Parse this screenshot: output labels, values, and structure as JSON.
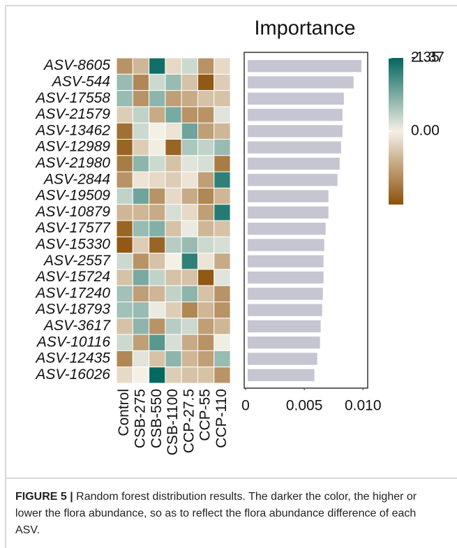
{
  "chart_data": [
    {
      "type": "heatmap",
      "rows": [
        "ASV-8605",
        "ASV-544",
        "ASV-17558",
        "ASV-21579",
        "ASV-13462",
        "ASV-12989",
        "ASV-21980",
        "ASV-2844",
        "ASV-19509",
        "ASV-10879",
        "ASV-17577",
        "ASV-15330",
        "ASV-2557",
        "ASV-15724",
        "ASV-17240",
        "ASV-18793",
        "ASV-3617",
        "ASV-10116",
        "ASV-12435",
        "ASV-16026"
      ],
      "columns": [
        "Control",
        "CSB-275",
        "CSB-550",
        "CSB-1100",
        "CCP-27.5",
        "CCP-55",
        "CCP-110"
      ],
      "values": [
        [
          -0.8,
          -0.5,
          2.2,
          -0.2,
          0.4,
          -0.8,
          -0.2
        ],
        [
          0.9,
          -0.9,
          0.4,
          0.9,
          -0.4,
          -1.3,
          -0.3
        ],
        [
          0.9,
          -0.8,
          1.0,
          -0.7,
          -0.6,
          -0.4,
          -0.4
        ],
        [
          -0.3,
          0.5,
          -0.6,
          1.2,
          -0.8,
          -0.8,
          0.2
        ],
        [
          -1.1,
          0.4,
          0.0,
          -0.1,
          1.3,
          -0.7,
          -0.5
        ],
        [
          -1.2,
          -0.3,
          0.05,
          -1.2,
          0.7,
          0.5,
          0.9
        ],
        [
          -1.0,
          1.0,
          0.4,
          -0.4,
          0.2,
          0.3,
          -1.0
        ],
        [
          -0.8,
          -0.1,
          -0.2,
          -0.3,
          -0.1,
          -0.7,
          1.9
        ],
        [
          0.5,
          1.3,
          -0.8,
          -0.2,
          -0.6,
          -0.9,
          -0.5
        ],
        [
          -0.5,
          -0.5,
          -0.6,
          0.3,
          -0.2,
          -0.7,
          2.0
        ],
        [
          -1.2,
          0.9,
          1.1,
          -0.4,
          0.1,
          -0.5,
          -0.4
        ],
        [
          -1.3,
          -0.3,
          -1.2,
          0.6,
          0.9,
          0.4,
          0.3
        ],
        [
          0.4,
          -0.8,
          -0.4,
          0.0,
          1.9,
          -0.1,
          -0.6
        ],
        [
          -0.4,
          1.2,
          0.5,
          -0.4,
          -0.4,
          -1.3,
          0.2
        ],
        [
          0.8,
          -0.7,
          -0.5,
          0.5,
          1.0,
          -0.4,
          -0.8
        ],
        [
          0.8,
          0.9,
          0.1,
          -0.3,
          -0.9,
          -0.5,
          -0.8
        ],
        [
          -0.4,
          1.0,
          -0.8,
          0.6,
          0.4,
          -0.7,
          -0.5
        ],
        [
          0.4,
          -0.7,
          1.5,
          0.3,
          -0.6,
          -0.8,
          0.05
        ],
        [
          -0.9,
          0.2,
          -0.4,
          1.0,
          -0.5,
          -0.7,
          0.9
        ],
        [
          -0.2,
          0.0,
          2.3,
          -0.3,
          -0.4,
          -0.4,
          -0.8
        ]
      ],
      "zlim": [
        -1.37,
        2.35
      ],
      "zticks": [
        2.35,
        {
          "value": 0,
          "label": "0.00"
        },
        -1.37
      ],
      "colors": {
        "low": "#8c510a",
        "mid": "#f5f0e6",
        "high": "#01665e"
      }
    },
    {
      "type": "bar",
      "orientation": "horizontal",
      "title": "Importance",
      "values": [
        0.00986,
        0.0092,
        0.00837,
        0.00825,
        0.00825,
        0.00813,
        0.00801,
        0.00783,
        0.00706,
        0.00706,
        0.00682,
        0.0067,
        0.00664,
        0.00664,
        0.00658,
        0.00652,
        0.0064,
        0.00634,
        0.0061,
        0.00586
      ],
      "color": "#c6c6d2",
      "xlim": [
        0,
        0.0104
      ],
      "xticks": [
        0,
        0.005,
        {
          "value": 0.01,
          "label": "0.010"
        }
      ]
    }
  ],
  "caption": {
    "label": "FIGURE 5 |",
    "text": "Random forest distribution results. The darker the color, the higher or lower the flora abundance, so as to reflect the flora abundance difference of each ASV."
  }
}
